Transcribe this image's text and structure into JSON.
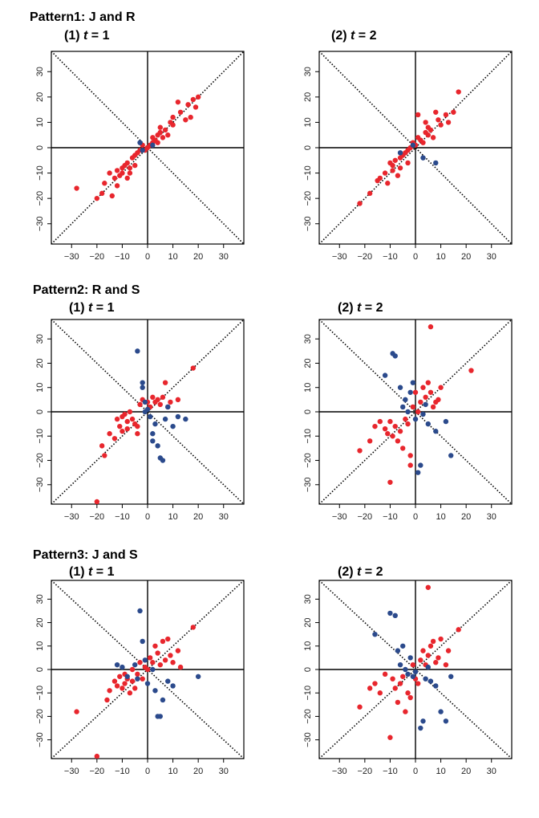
{
  "colors": {
    "red": "#e8262d",
    "blue": "#2b4a8c",
    "axis": "#000000"
  },
  "axis": {
    "xlim": [
      -38,
      38
    ],
    "ylim": [
      -38,
      38
    ],
    "xticks": [
      -30,
      -20,
      -10,
      0,
      10,
      20,
      30
    ],
    "yticks": [
      -30,
      -20,
      -10,
      0,
      10,
      20,
      30
    ],
    "tick_labels_x": [
      "−30",
      "−20",
      "−10",
      "0",
      "10",
      "20",
      "30"
    ],
    "tick_labels_y": [
      "−30",
      "−20",
      "−10",
      "0",
      "10",
      "20",
      "30"
    ]
  },
  "patterns": [
    {
      "title": "Pattern1: J and R",
      "panels": [
        {
          "label_prefix": "(1) ",
          "label_var": "t",
          "label_eq": " = 1"
        },
        {
          "label_prefix": "(2) ",
          "label_var": "t",
          "label_eq": " = 2"
        }
      ]
    },
    {
      "title": "Pattern2: R and S",
      "panels": [
        {
          "label_prefix": "(1) ",
          "label_var": "t",
          "label_eq": " = 1"
        },
        {
          "label_prefix": "(2) ",
          "label_var": "t",
          "label_eq": " = 2"
        }
      ]
    },
    {
      "title": "Pattern3: J and S",
      "panels": [
        {
          "label_prefix": "(1) ",
          "label_var": "t",
          "label_eq": " = 1"
        },
        {
          "label_prefix": "(2) ",
          "label_var": "t",
          "label_eq": " = 2"
        }
      ]
    }
  ],
  "chart_data": [
    {
      "type": "scatter",
      "title": "Pattern1: J and R (1) t = 1",
      "xlim": [
        -38,
        38
      ],
      "ylim": [
        -38,
        38
      ],
      "grid": false,
      "series": [
        {
          "name": "red",
          "x": [
            -28,
            -20,
            -18,
            -17,
            -15,
            -14,
            -13,
            -12,
            -12,
            -11,
            -10,
            -10,
            -9,
            -8,
            -8,
            -7,
            -7,
            -6,
            -5,
            -5,
            -4,
            -3,
            -2,
            -1,
            0,
            1,
            2,
            2,
            3,
            4,
            4,
            5,
            5,
            6,
            7,
            8,
            9,
            10,
            10,
            12,
            13,
            15,
            16,
            17,
            18,
            19,
            20
          ],
          "y": [
            -16,
            -20,
            -18,
            -14,
            -10,
            -19,
            -12,
            -15,
            -9,
            -11,
            -10,
            -8,
            -7,
            -12,
            -6,
            -8,
            -10,
            -4,
            -7,
            -3,
            -2,
            -1,
            1,
            -1,
            0,
            1,
            2,
            4,
            3,
            5,
            2,
            6,
            8,
            4,
            7,
            5,
            10,
            12,
            9,
            18,
            14,
            11,
            17,
            12,
            19,
            16,
            20
          ]
        },
        {
          "name": "blue",
          "x": [
            -3,
            -2,
            2
          ],
          "y": [
            2,
            -1,
            1
          ]
        }
      ]
    },
    {
      "type": "scatter",
      "title": "Pattern1: J and R (2) t = 2",
      "xlim": [
        -38,
        38
      ],
      "ylim": [
        -38,
        38
      ],
      "grid": false,
      "series": [
        {
          "name": "red",
          "x": [
            -22,
            -18,
            -15,
            -14,
            -12,
            -11,
            -10,
            -9,
            -9,
            -8,
            -7,
            -6,
            -6,
            -5,
            -4,
            -3,
            -3,
            -2,
            -1,
            0,
            1,
            1,
            2,
            3,
            4,
            4,
            5,
            5,
            6,
            7,
            8,
            9,
            10,
            12,
            13,
            15,
            17
          ],
          "y": [
            -22,
            -18,
            -13,
            -12,
            -10,
            -14,
            -6,
            -7,
            -9,
            -5,
            -11,
            -4,
            -8,
            -3,
            -2,
            -1,
            -6,
            0,
            2,
            1,
            4,
            13,
            3,
            2,
            6,
            10,
            5,
            8,
            7,
            4,
            14,
            11,
            9,
            13,
            10,
            14,
            22
          ]
        },
        {
          "name": "blue",
          "x": [
            -6,
            -1,
            3,
            8
          ],
          "y": [
            -2,
            1,
            -4,
            -6
          ]
        }
      ]
    },
    {
      "type": "scatter",
      "title": "Pattern2: R and S (1) t = 1",
      "xlim": [
        -38,
        38
      ],
      "ylim": [
        -38,
        38
      ],
      "grid": false,
      "series": [
        {
          "name": "red",
          "x": [
            -20,
            -18,
            -17,
            -15,
            -13,
            -12,
            -11,
            -10,
            -10,
            -9,
            -8,
            -8,
            -7,
            -6,
            -5,
            -4,
            -4,
            -3,
            -2,
            0,
            1,
            2,
            3,
            4,
            5,
            6,
            7,
            8,
            9,
            12,
            18
          ],
          "y": [
            -37,
            -14,
            -18,
            -9,
            -11,
            -3,
            -6,
            -2,
            -8,
            -1,
            -4,
            -7,
            0,
            -3,
            -5,
            -6,
            -9,
            3,
            5,
            4,
            2,
            6,
            4,
            5,
            3,
            6,
            12,
            2,
            4,
            5,
            18
          ]
        },
        {
          "name": "blue",
          "x": [
            -4,
            -2,
            -2,
            -1,
            -1,
            0,
            1,
            2,
            2,
            3,
            4,
            5,
            6,
            7,
            8,
            10,
            12,
            15
          ],
          "y": [
            25,
            12,
            10,
            4,
            0,
            1,
            -2,
            -9,
            -12,
            -5,
            -14,
            -19,
            -20,
            -3,
            2,
            -6,
            -2,
            -3
          ]
        }
      ]
    },
    {
      "type": "scatter",
      "title": "Pattern2: R and S (2) t = 2",
      "xlim": [
        -38,
        38
      ],
      "ylim": [
        -38,
        38
      ],
      "grid": false,
      "series": [
        {
          "name": "red",
          "x": [
            -22,
            -18,
            -16,
            -14,
            -12,
            -11,
            -10,
            -10,
            -9,
            -8,
            -7,
            -6,
            -5,
            -4,
            -3,
            -2,
            -2,
            -1,
            0,
            1,
            2,
            3,
            4,
            5,
            6,
            6,
            7,
            8,
            9,
            10,
            22
          ],
          "y": [
            -16,
            -12,
            -6,
            -4,
            -7,
            -9,
            -29,
            -4,
            -10,
            -6,
            -12,
            -8,
            -15,
            -3,
            -5,
            -18,
            -22,
            2,
            8,
            0,
            4,
            10,
            6,
            12,
            35,
            8,
            2,
            4,
            5,
            10,
            17
          ]
        },
        {
          "name": "blue",
          "x": [
            -12,
            -9,
            -8,
            -6,
            -5,
            -4,
            -3,
            -2,
            -1,
            0,
            1,
            2,
            3,
            4,
            5,
            8,
            12,
            14
          ],
          "y": [
            15,
            24,
            23,
            10,
            2,
            5,
            0,
            8,
            12,
            -3,
            -25,
            -22,
            -1,
            3,
            -5,
            -8,
            -4,
            -18
          ]
        }
      ]
    },
    {
      "type": "scatter",
      "title": "Pattern3: J and S (1) t = 1",
      "xlim": [
        -38,
        38
      ],
      "ylim": [
        -38,
        38
      ],
      "grid": false,
      "series": [
        {
          "name": "red",
          "x": [
            -28,
            -20,
            -16,
            -15,
            -13,
            -12,
            -11,
            -10,
            -9,
            -9,
            -8,
            -7,
            -6,
            -6,
            -5,
            -4,
            -3,
            -2,
            -1,
            0,
            1,
            2,
            3,
            4,
            5,
            6,
            7,
            8,
            9,
            10,
            12,
            13,
            18
          ],
          "y": [
            -18,
            -37,
            -13,
            -9,
            -5,
            -7,
            -3,
            -8,
            -2,
            -6,
            -4,
            -10,
            0,
            -5,
            -8,
            -2,
            3,
            -4,
            1,
            0,
            5,
            3,
            10,
            7,
            2,
            12,
            4,
            13,
            6,
            3,
            8,
            1,
            18
          ]
        },
        {
          "name": "blue",
          "x": [
            -12,
            -10,
            -8,
            -5,
            -4,
            -3,
            -2,
            -1,
            0,
            2,
            3,
            4,
            5,
            6,
            8,
            10,
            20
          ],
          "y": [
            2,
            1,
            -3,
            2,
            -4,
            25,
            12,
            4,
            -6,
            0,
            -9,
            -20,
            -20,
            -13,
            -5,
            -7,
            -3
          ]
        }
      ]
    },
    {
      "type": "scatter",
      "title": "Pattern3: J and S (2) t = 2",
      "xlim": [
        -38,
        38
      ],
      "ylim": [
        -38,
        38
      ],
      "grid": false,
      "series": [
        {
          "name": "red",
          "x": [
            -22,
            -18,
            -16,
            -14,
            -12,
            -10,
            -9,
            -8,
            -7,
            -6,
            -5,
            -4,
            -3,
            -2,
            -1,
            0,
            1,
            2,
            3,
            4,
            5,
            5,
            6,
            7,
            8,
            9,
            10,
            12,
            13,
            17
          ],
          "y": [
            -16,
            -8,
            -6,
            -10,
            -2,
            -29,
            -4,
            -8,
            -14,
            -6,
            -3,
            -18,
            -10,
            -12,
            2,
            -4,
            -6,
            4,
            8,
            2,
            6,
            35,
            10,
            12,
            3,
            5,
            13,
            2,
            8,
            17
          ]
        },
        {
          "name": "blue",
          "x": [
            -16,
            -10,
            -8,
            -7,
            -6,
            -5,
            -4,
            -3,
            -2,
            -1,
            0,
            2,
            3,
            4,
            5,
            6,
            8,
            10,
            12,
            14
          ],
          "y": [
            15,
            24,
            23,
            8,
            2,
            10,
            0,
            -2,
            5,
            -3,
            -1,
            -25,
            -22,
            -4,
            1,
            -5,
            -7,
            -18,
            -22,
            -3
          ]
        }
      ]
    }
  ]
}
